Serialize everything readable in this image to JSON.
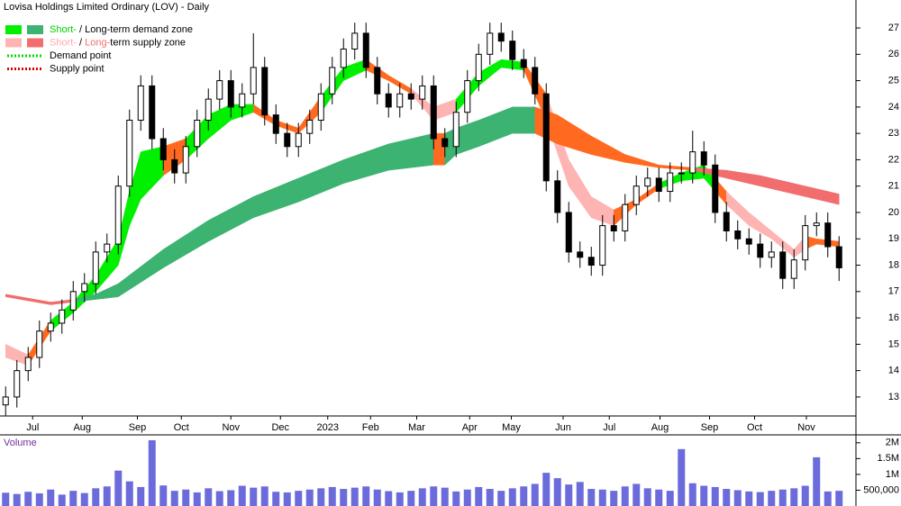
{
  "chart_data": [
    {
      "type": "candlestick",
      "title": "Lovisa Holdings Limited Ordinary (LOV) - Daily",
      "axis_side": "right",
      "x": [
        0,
        1,
        2,
        3,
        4,
        5,
        6,
        7,
        8,
        9,
        10,
        11,
        12,
        13,
        14,
        15,
        16,
        17,
        18,
        19,
        20,
        21,
        22,
        23,
        24,
        25,
        26,
        27,
        28,
        29,
        30,
        31,
        32,
        33,
        34,
        35,
        36,
        37,
        38,
        39,
        40,
        41,
        42,
        43,
        44,
        45,
        46,
        47,
        48,
        49,
        50,
        51,
        52,
        53,
        54,
        55,
        56,
        57,
        58,
        59,
        60,
        61,
        62,
        63,
        64,
        65,
        66,
        67,
        68,
        69,
        70,
        71,
        72,
        73,
        74
      ],
      "open": [
        12.7,
        13.0,
        14.0,
        14.5,
        15.5,
        15.8,
        16.3,
        17.0,
        17.3,
        18.5,
        18.8,
        21.0,
        23.5,
        24.8,
        22.8,
        22.0,
        21.5,
        22.5,
        23.5,
        24.3,
        25.0,
        24.0,
        24.5,
        25.5,
        23.7,
        23.0,
        22.5,
        23.0,
        23.5,
        24.5,
        25.5,
        26.2,
        26.8,
        25.5,
        24.5,
        24.0,
        24.5,
        24.3,
        24.8,
        22.8,
        22.5,
        23.8,
        25.0,
        26.0,
        26.8,
        26.5,
        25.8,
        25.5,
        24.5,
        21.2,
        20.0,
        18.5,
        18.3,
        18.0,
        19.5,
        19.3,
        20.3,
        21.0,
        21.3,
        20.8,
        21.5,
        21.5,
        22.3,
        21.8,
        20.0,
        19.3,
        19.0,
        18.8,
        18.3,
        18.5,
        17.5,
        18.2,
        19.5,
        19.6,
        18.7
      ],
      "high": [
        13.4,
        14.4,
        14.9,
        15.9,
        16.2,
        16.7,
        17.4,
        17.7,
        18.9,
        19.2,
        21.4,
        23.9,
        25.2,
        25.2,
        23.2,
        22.4,
        22.9,
        23.9,
        24.7,
        25.4,
        25.4,
        24.9,
        26.8,
        25.9,
        24.1,
        23.4,
        23.4,
        23.9,
        24.9,
        25.9,
        26.6,
        27.2,
        27.2,
        25.9,
        24.9,
        24.9,
        24.9,
        25.2,
        25.2,
        23.2,
        24.2,
        25.4,
        26.4,
        27.2,
        27.2,
        26.9,
        26.2,
        25.9,
        24.9,
        21.6,
        20.4,
        18.9,
        18.7,
        19.9,
        19.9,
        20.7,
        21.4,
        21.7,
        21.7,
        21.9,
        21.9,
        23.1,
        22.7,
        22.2,
        20.4,
        19.7,
        19.4,
        19.2,
        18.9,
        18.9,
        18.6,
        19.9,
        20.0,
        20.0,
        19.1
      ],
      "low": [
        12.3,
        12.6,
        13.6,
        14.1,
        15.1,
        15.4,
        15.9,
        16.6,
        16.9,
        18.1,
        18.4,
        20.6,
        23.1,
        22.4,
        21.6,
        21.1,
        21.1,
        22.1,
        23.1,
        23.9,
        23.6,
        23.6,
        24.1,
        23.3,
        22.6,
        22.1,
        22.1,
        22.6,
        23.1,
        24.1,
        25.1,
        25.8,
        25.1,
        24.1,
        23.6,
        23.6,
        23.9,
        23.9,
        22.4,
        22.1,
        22.1,
        23.4,
        24.6,
        25.6,
        26.1,
        25.4,
        25.1,
        24.1,
        20.8,
        19.6,
        18.1,
        17.9,
        17.6,
        17.6,
        18.9,
        18.9,
        19.9,
        20.6,
        20.4,
        20.4,
        21.1,
        21.1,
        21.4,
        19.6,
        18.9,
        18.6,
        18.4,
        17.9,
        17.9,
        17.1,
        17.1,
        17.8,
        19.1,
        18.3,
        17.4
      ],
      "close": [
        13.0,
        14.0,
        14.5,
        15.5,
        15.8,
        16.3,
        17.0,
        17.3,
        18.5,
        18.8,
        21.0,
        23.5,
        24.8,
        22.8,
        22.0,
        21.5,
        22.5,
        23.5,
        24.3,
        25.0,
        24.0,
        24.5,
        25.5,
        23.7,
        23.0,
        22.5,
        23.0,
        23.5,
        24.5,
        25.5,
        26.2,
        26.8,
        25.5,
        24.5,
        24.0,
        24.5,
        24.3,
        24.8,
        22.8,
        22.5,
        23.8,
        25.0,
        26.0,
        26.8,
        26.5,
        25.8,
        25.5,
        24.5,
        21.2,
        20.0,
        18.5,
        18.3,
        18.0,
        19.5,
        19.3,
        20.3,
        21.0,
        21.3,
        20.8,
        21.5,
        21.5,
        22.3,
        21.8,
        20.0,
        19.3,
        19.0,
        18.8,
        18.3,
        18.5,
        17.5,
        18.2,
        19.5,
        19.6,
        18.7,
        17.9
      ],
      "up_color": "#ffffff",
      "down_color": "#000000",
      "wick_color": "#000000",
      "zones": [
        {
          "colors": {
            "demand": "#00f000",
            "supply": "#ffb4b4",
            "transition": "#ff6a20"
          },
          "x": [
            0,
            2,
            4,
            6,
            8,
            10,
            11,
            12,
            14,
            16,
            18,
            20,
            22,
            24,
            26,
            28,
            30,
            32,
            34,
            36,
            38,
            40,
            42,
            44,
            46,
            48,
            50,
            52,
            54,
            56,
            58,
            60,
            62,
            63,
            64,
            66,
            68,
            70,
            71,
            72,
            74
          ],
          "lower": [
            14.5,
            14.2,
            15.5,
            16.2,
            17.0,
            18.0,
            19.5,
            20.5,
            21.4,
            22.0,
            22.8,
            23.5,
            23.8,
            23.3,
            23.0,
            23.8,
            25.0,
            25.4,
            25.0,
            24.5,
            23.5,
            23.8,
            24.8,
            25.5,
            25.4,
            23.5,
            21.0,
            19.8,
            19.5,
            20.3,
            20.9,
            21.2,
            21.3,
            20.8,
            20.3,
            19.5,
            19.0,
            18.3,
            18.6,
            18.8,
            18.7
          ],
          "upper": [
            15.0,
            14.6,
            15.9,
            16.6,
            17.6,
            19.0,
            20.8,
            22.3,
            22.5,
            22.8,
            23.7,
            24.1,
            24.1,
            23.5,
            23.2,
            24.4,
            25.5,
            25.8,
            25.2,
            24.7,
            24.0,
            24.3,
            25.3,
            25.8,
            25.7,
            24.5,
            22.0,
            20.6,
            20.1,
            20.5,
            21.1,
            21.5,
            21.8,
            21.3,
            20.8,
            20.0,
            19.3,
            18.6,
            19.1,
            19.0,
            18.9
          ],
          "state": [
            "supply",
            "transition",
            "demand",
            "demand",
            "demand",
            "demand",
            "demand",
            "demand",
            "transition",
            "demand",
            "demand",
            "demand",
            "transition",
            "transition",
            "transition",
            "demand",
            "demand",
            "transition",
            "transition",
            "supply",
            "supply",
            "demand",
            "demand",
            "demand",
            "transition",
            "supply",
            "supply",
            "supply",
            "transition",
            "transition",
            "demand",
            "demand",
            "demand",
            "transition",
            "supply",
            "supply",
            "supply",
            "supply",
            "transition",
            "transition"
          ]
        },
        {
          "colors": {
            "demand": "#3cb371",
            "supply": "#f26d6d",
            "transition": "#ff6a20"
          },
          "x": [
            0,
            4,
            6,
            8,
            10,
            14,
            18,
            22,
            26,
            30,
            34,
            38,
            39,
            40,
            42,
            45,
            47,
            49,
            52,
            55,
            58,
            61,
            64,
            67,
            70,
            74
          ],
          "lower": [
            16.8,
            16.5,
            16.6,
            16.7,
            16.8,
            17.9,
            18.9,
            19.8,
            20.4,
            21.1,
            21.6,
            21.8,
            21.8,
            22.2,
            22.5,
            23.0,
            23.0,
            22.6,
            22.2,
            21.9,
            21.7,
            21.6,
            21.3,
            21.0,
            20.7,
            20.3
          ],
          "upper": [
            16.9,
            16.6,
            16.7,
            16.9,
            17.3,
            18.6,
            19.7,
            20.6,
            21.3,
            22.0,
            22.6,
            23.0,
            23.0,
            23.2,
            23.5,
            24.0,
            24.0,
            23.7,
            22.9,
            22.2,
            21.8,
            21.7,
            21.6,
            21.4,
            21.1,
            20.7
          ],
          "state": [
            "supply",
            "supply",
            "demand",
            "demand",
            "demand",
            "demand",
            "demand",
            "demand",
            "demand",
            "demand",
            "demand",
            "transition",
            "demand",
            "demand",
            "demand",
            "demand",
            "transition",
            "transition",
            "transition",
            "transition",
            "transition",
            "supply",
            "supply",
            "supply",
            "supply"
          ]
        }
      ],
      "legend": [
        {
          "state": "demand",
          "parts": [
            {
              "text": "Short-",
              "color": "#00d000"
            },
            {
              "text": " / "
            },
            {
              "text": "Long-term demand zone"
            }
          ]
        },
        {
          "state": "supply",
          "parts": [
            {
              "text": "Short-",
              "color": "#ffaaaa"
            },
            {
              "text": " / "
            },
            {
              "text": "Long-",
              "color": "#f26d6d"
            },
            {
              "text": "term supply zone"
            }
          ]
        },
        {
          "line_color": "#00dd00",
          "parts": [
            {
              "text": "Demand point"
            }
          ]
        },
        {
          "line_color": "#dd0000",
          "parts": [
            {
              "text": "Supply point"
            }
          ]
        }
      ],
      "xlim": [
        -0.5,
        75.5
      ],
      "xticks": [
        {
          "value": 2.4,
          "label": "Jul"
        },
        {
          "value": 6.8,
          "label": "Aug"
        },
        {
          "value": 11.7,
          "label": "Sep"
        },
        {
          "value": 15.6,
          "label": "Oct"
        },
        {
          "value": 20.0,
          "label": "Nov"
        },
        {
          "value": 24.4,
          "label": "Dec"
        },
        {
          "value": 28.6,
          "label": "2023"
        },
        {
          "value": 32.4,
          "label": "Feb"
        },
        {
          "value": 36.5,
          "label": "Mar"
        },
        {
          "value": 41.2,
          "label": "Apr"
        },
        {
          "value": 44.9,
          "label": "May"
        },
        {
          "value": 49.5,
          "label": "Jun"
        },
        {
          "value": 53.6,
          "label": "Jul"
        },
        {
          "value": 58.1,
          "label": "Aug"
        },
        {
          "value": 62.5,
          "label": "Sep"
        },
        {
          "value": 66.5,
          "label": "Oct"
        },
        {
          "value": 71.1,
          "label": "Nov"
        }
      ],
      "ylim": [
        12.28,
        28.06
      ],
      "yticks": [
        13,
        14,
        15,
        16,
        17,
        18,
        19,
        20,
        21,
        22,
        23,
        24,
        25,
        26,
        27
      ]
    },
    {
      "type": "bar",
      "title": "Volume",
      "axis_side": "right",
      "color": "#6b6bdc",
      "x": [
        0,
        1,
        2,
        3,
        4,
        5,
        6,
        7,
        8,
        9,
        10,
        11,
        12,
        13,
        14,
        15,
        16,
        17,
        18,
        19,
        20,
        21,
        22,
        23,
        24,
        25,
        26,
        27,
        28,
        29,
        30,
        31,
        32,
        33,
        34,
        35,
        36,
        37,
        38,
        39,
        40,
        41,
        42,
        43,
        44,
        45,
        46,
        47,
        48,
        49,
        50,
        51,
        52,
        53,
        54,
        55,
        56,
        57,
        58,
        59,
        60,
        61,
        62,
        63,
        64,
        65,
        66,
        67,
        68,
        69,
        70,
        71,
        72,
        73,
        74
      ],
      "values": [
        420000,
        380000,
        450000,
        400000,
        520000,
        360000,
        480000,
        410000,
        560000,
        620000,
        1120000,
        780000,
        600000,
        2080000,
        650000,
        480000,
        520000,
        430000,
        560000,
        470000,
        500000,
        640000,
        580000,
        620000,
        450000,
        430000,
        480000,
        520000,
        560000,
        600000,
        540000,
        580000,
        620000,
        520000,
        470000,
        430000,
        480000,
        560000,
        620000,
        580000,
        460000,
        520000,
        600000,
        540000,
        480000,
        560000,
        620000,
        700000,
        1050000,
        880000,
        680000,
        760000,
        540000,
        520000,
        480000,
        620000,
        700000,
        560000,
        520000,
        480000,
        1800000,
        720000,
        640000,
        600000,
        540000,
        500000,
        460000,
        440000,
        480000,
        520000,
        560000,
        640000,
        1540000,
        460000,
        480000
      ],
      "xlim": [
        -0.5,
        75.5
      ],
      "ylim": [
        0,
        2250000
      ],
      "yticks": [
        {
          "value": 500000,
          "label": "500,000"
        },
        {
          "value": 1000000,
          "label": "1M"
        },
        {
          "value": 1500000,
          "label": "1.5M"
        },
        {
          "value": 2000000,
          "label": "2M"
        }
      ]
    }
  ]
}
